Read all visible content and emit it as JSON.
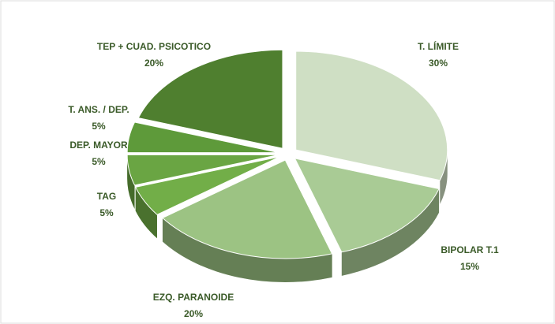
{
  "chart_data": {
    "type": "pie",
    "categories": [
      "T. LÍMITE",
      "BIPOLAR T.1",
      "EZQ. PARANOIDE",
      "TAG",
      "DEP. MAYOR",
      "T. ANS. / DEP.",
      "TEP + CUAD. PSICOTICO"
    ],
    "values": [
      30,
      15,
      20,
      5,
      5,
      5,
      20
    ],
    "value_labels": [
      "30%",
      "15%",
      "20%",
      "5%",
      "5%",
      "5%",
      "20%"
    ],
    "colors": [
      "#cfdfc4",
      "#a9cb95",
      "#9cc383",
      "#72ae48",
      "#6aa543",
      "#5e9a3a",
      "#4f7f2f"
    ]
  }
}
